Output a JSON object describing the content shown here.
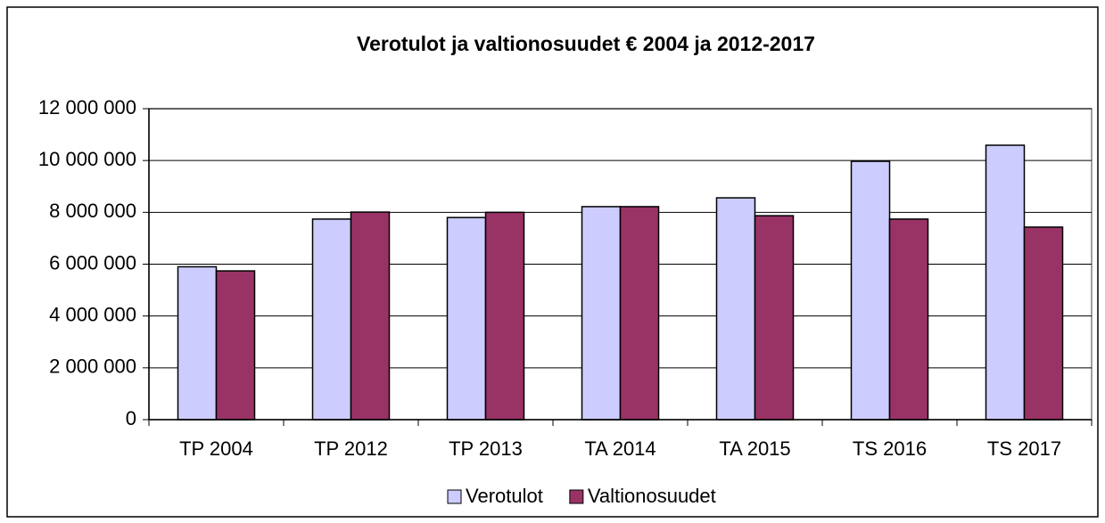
{
  "chart_data": {
    "type": "bar",
    "title": "Verotulot ja valtionosuudet €  2004 ja 2012-2017",
    "categories": [
      "TP 2004",
      "TP 2012",
      "TP 2013",
      "TA 2014",
      "TA 2015",
      "TS 2016",
      "TS 2017"
    ],
    "series": [
      {
        "name": "Verotulot",
        "color": "#ccccff",
        "values": [
          5900000,
          7740000,
          7800000,
          8220000,
          8560000,
          9970000,
          10590000
        ]
      },
      {
        "name": "Valtionosuudet",
        "color": "#993366",
        "values": [
          5740000,
          8010000,
          8000000,
          8220000,
          7870000,
          7740000,
          7430000
        ]
      }
    ],
    "ylim": [
      0,
      12000000
    ],
    "yticks": [
      0,
      {
        "value": 2000000,
        "label": "2 000 000"
      },
      {
        "value": 4000000,
        "label": "4 000 000"
      },
      {
        "value": 6000000,
        "label": "6 000 000"
      },
      {
        "value": 8000000,
        "label": "8 000 000"
      },
      {
        "value": 10000000,
        "label": "10 000 000"
      },
      {
        "value": 12000000,
        "label": "12 000 000"
      }
    ],
    "grid": true,
    "legend": "bottom"
  }
}
